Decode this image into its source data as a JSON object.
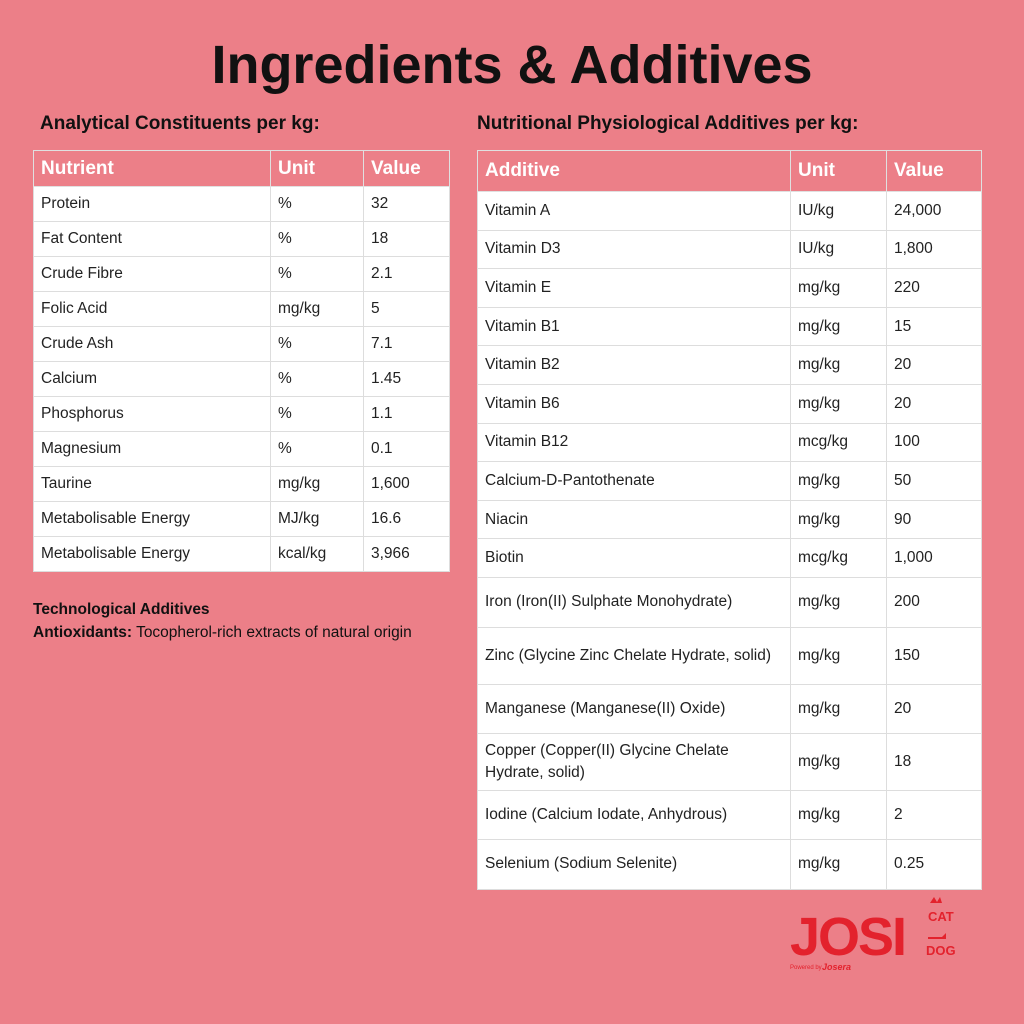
{
  "title": "Ingredients & Additives",
  "left": {
    "heading": "Analytical Constituents per kg:",
    "columns": [
      "Nutrient",
      "Unit",
      "Value"
    ],
    "rows": [
      [
        "Protein",
        "%",
        "32"
      ],
      [
        "Fat Content",
        "%",
        "18"
      ],
      [
        "Crude Fibre",
        "%",
        "2.1"
      ],
      [
        "Folic Acid",
        "mg/kg",
        "5"
      ],
      [
        "Crude Ash",
        "%",
        "7.1"
      ],
      [
        "Calcium",
        "%",
        "1.45"
      ],
      [
        "Phosphorus",
        "%",
        "1.1"
      ],
      [
        "Magnesium",
        "%",
        "0.1"
      ],
      [
        "Taurine",
        "mg/kg",
        "1,600"
      ],
      [
        "Metabolisable Energy",
        "MJ/kg",
        "16.6"
      ],
      [
        "Metabolisable Energy",
        "kcal/kg",
        "3,966"
      ]
    ]
  },
  "right": {
    "heading": "Nutritional Physiological Additives per kg:",
    "columns": [
      "Additive",
      "Unit",
      "Value"
    ],
    "rows": [
      [
        "Vitamin A",
        "IU/kg",
        "24,000"
      ],
      [
        "Vitamin D3",
        "IU/kg",
        "1,800"
      ],
      [
        "Vitamin E",
        "mg/kg",
        "220"
      ],
      [
        "Vitamin B1",
        "mg/kg",
        "15"
      ],
      [
        "Vitamin B2",
        "mg/kg",
        "20"
      ],
      [
        "Vitamin B6",
        "mg/kg",
        "20"
      ],
      [
        "Vitamin B12",
        "mcg/kg",
        "100"
      ],
      [
        "Calcium-D-Pantothenate",
        "mg/kg",
        "50"
      ],
      [
        "Niacin",
        "mg/kg",
        "90"
      ],
      [
        "Biotin",
        "mcg/kg",
        "1,000"
      ],
      [
        "Iron (Iron(II) Sulphate Monohydrate)",
        "mg/kg",
        "200"
      ],
      [
        "Zinc (Glycine Zinc Chelate Hydrate, solid)",
        "mg/kg",
        "150"
      ],
      [
        "Manganese (Manganese(II) Oxide)",
        "mg/kg",
        "20"
      ],
      [
        "Copper (Copper(II) Glycine Chelate Hydrate, solid)",
        "mg/kg",
        "18"
      ],
      [
        "Iodine (Calcium Iodate, Anhydrous)",
        "mg/kg",
        "2"
      ],
      [
        "Selenium (Sodium Selenite)",
        "mg/kg",
        "0.25"
      ]
    ]
  },
  "technological": {
    "heading": "Technological Additives",
    "label": "Antioxidants:",
    "text": "Tocopherol-rich extracts of natural origin"
  },
  "logo": {
    "brand": "JOSI",
    "cat": "CAT",
    "dog": "DOG",
    "powered": "Powered by",
    "maker": "Josera"
  }
}
